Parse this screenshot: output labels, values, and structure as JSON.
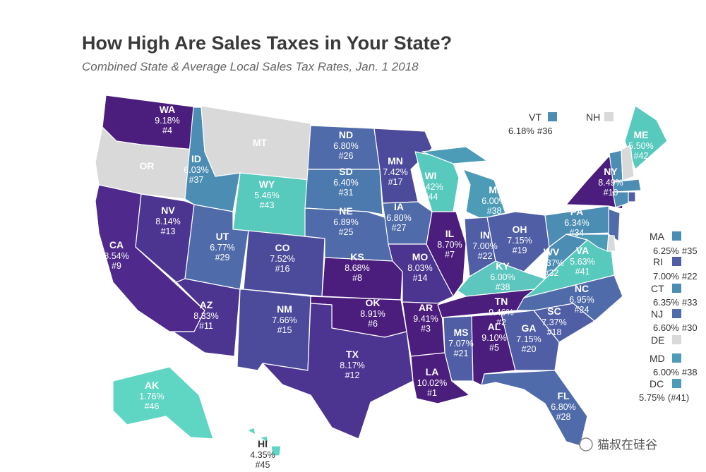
{
  "header": {
    "title": "How High Are Sales Taxes in Your State?",
    "subtitle": "Combined State & Average Local Sales Tax Rates, Jan. 1 2018"
  },
  "states": [
    {
      "abbr": "WA",
      "rate": "9.18%",
      "rank": "#4",
      "color": "#4b1d7c"
    },
    {
      "abbr": "OR",
      "color": "#d9d9d9"
    },
    {
      "abbr": "CA",
      "rate": "8.54%",
      "rank": "#9",
      "color": "#4f2a8c"
    },
    {
      "abbr": "NV",
      "rate": "8.14%",
      "rank": "#13",
      "color": "#4b3590"
    },
    {
      "abbr": "ID",
      "rate": "6.03%",
      "rank": "#37",
      "color": "#4c8db3"
    },
    {
      "abbr": "MT",
      "color": "#d9d9d9"
    },
    {
      "abbr": "WY",
      "rate": "5.46%",
      "rank": "#43",
      "color": "#57c9bd"
    },
    {
      "abbr": "UT",
      "rate": "6.77%",
      "rank": "#29",
      "color": "#4f6ba9"
    },
    {
      "abbr": "AZ",
      "rate": "8.33%",
      "rank": "#11",
      "color": "#4b3590"
    },
    {
      "abbr": "CO",
      "rate": "7.52%",
      "rank": "#16",
      "color": "#4c4a9a"
    },
    {
      "abbr": "NM",
      "rate": "7.66%",
      "rank": "#15",
      "color": "#4c4a9a"
    },
    {
      "abbr": "ND",
      "rate": "6.80%",
      "rank": "#26",
      "color": "#4f6ba9"
    },
    {
      "abbr": "SD",
      "rate": "6.40%",
      "rank": "#31",
      "color": "#4d7aae"
    },
    {
      "abbr": "NE",
      "rate": "6.89%",
      "rank": "#25",
      "color": "#4f6ba9"
    },
    {
      "abbr": "KS",
      "rate": "8.68%",
      "rank": "#8",
      "color": "#4b1d7c"
    },
    {
      "abbr": "OK",
      "rate": "8.91%",
      "rank": "#6",
      "color": "#4b1d7c"
    },
    {
      "abbr": "TX",
      "rate": "8.17%",
      "rank": "#12",
      "color": "#4b3590"
    },
    {
      "abbr": "MN",
      "rate": "7.42%",
      "rank": "#17",
      "color": "#4c4a9a"
    },
    {
      "abbr": "IA",
      "rate": "6.80%",
      "rank": "#27",
      "color": "#4f6ba9"
    },
    {
      "abbr": "MO",
      "rate": "8.03%",
      "rank": "#14",
      "color": "#4b3590"
    },
    {
      "abbr": "AR",
      "rate": "9.41%",
      "rank": "#3",
      "color": "#4b1d7c"
    },
    {
      "abbr": "LA",
      "rate": "10.02%",
      "rank": "#1",
      "color": "#4b1d7c"
    },
    {
      "abbr": "WI",
      "rate": "5.42%",
      "rank": "#44",
      "color": "#57c9bd"
    },
    {
      "abbr": "IL",
      "rate": "8.70%",
      "rank": "#7",
      "color": "#4b1d7c"
    },
    {
      "abbr": "MI",
      "rate": "6.00%",
      "rank": "#38",
      "color": "#4c9cb8"
    },
    {
      "abbr": "IN",
      "rate": "7.00%",
      "rank": "#22",
      "color": "#4f5ea5"
    },
    {
      "abbr": "OH",
      "rate": "7.15%",
      "rank": "#19",
      "color": "#4f5ea5"
    },
    {
      "abbr": "KY",
      "rate": "6.00%",
      "rank": "#38",
      "color": "#5cc6bf"
    },
    {
      "abbr": "TN",
      "rate": "9.46%",
      "rank": "#2",
      "color": "#4b1d7c"
    },
    {
      "abbr": "MS",
      "rate": "7.07%",
      "rank": "#21",
      "color": "#4f5ea5"
    },
    {
      "abbr": "AL",
      "rate": "9.10%",
      "rank": "#5",
      "color": "#4b1d7c"
    },
    {
      "abbr": "GA",
      "rate": "7.15%",
      "rank": "#20",
      "color": "#4f5ea5"
    },
    {
      "abbr": "FL",
      "rate": "6.80%",
      "rank": "#28",
      "color": "#4f6ba9"
    },
    {
      "abbr": "SC",
      "rate": "7.37%",
      "rank": "#18",
      "color": "#4f5ea5"
    },
    {
      "abbr": "NC",
      "rate": "6.95%",
      "rank": "#24",
      "color": "#4f6ba9"
    },
    {
      "abbr": "VA",
      "rate": "5.63%",
      "rank": "#41",
      "color": "#57c9bd"
    },
    {
      "abbr": "WV",
      "rate": "6.37%",
      "rank": "#32",
      "color": "#4c8db3"
    },
    {
      "abbr": "PA",
      "rate": "6.34%",
      "rank": "#34",
      "color": "#4c8db3"
    },
    {
      "abbr": "NY",
      "rate": "8.49%",
      "rank": "#10",
      "color": "#4b1d7c"
    },
    {
      "abbr": "ME",
      "rate": "5.50%",
      "rank": "#42",
      "color": "#57c9bd"
    },
    {
      "abbr": "AK",
      "rate": "1.76%",
      "rank": "#46",
      "color": "#5fd6c3"
    },
    {
      "abbr": "HI",
      "rate": "4.35%",
      "rank": "#45",
      "color": "#5fd6c3"
    }
  ],
  "callouts": [
    {
      "abbr": "VT",
      "rate": "6.18%",
      "rank": "#36",
      "color": "#4c8db3"
    },
    {
      "abbr": "NH",
      "color": "#d9d9d9"
    },
    {
      "abbr": "MA",
      "rate": "6.25%",
      "rank": "#35",
      "color": "#4c8db3"
    },
    {
      "abbr": "RI",
      "rate": "7.00%",
      "rank": "#22",
      "color": "#4f5ea5"
    },
    {
      "abbr": "CT",
      "rate": "6.35%",
      "rank": "#33",
      "color": "#4c8db3"
    },
    {
      "abbr": "NJ",
      "rate": "6.60%",
      "rank": "#30",
      "color": "#4f6ba9"
    },
    {
      "abbr": "DE",
      "color": "#d9d9d9"
    },
    {
      "abbr": "MD",
      "rate": "6.00%",
      "rank": "#38",
      "color": "#4c9cb8"
    },
    {
      "abbr": "DC",
      "rate": "5.75%",
      "rank": "(#41)",
      "color": "#4c9cb8"
    }
  ],
  "watermark": "猫叔在硅谷"
}
